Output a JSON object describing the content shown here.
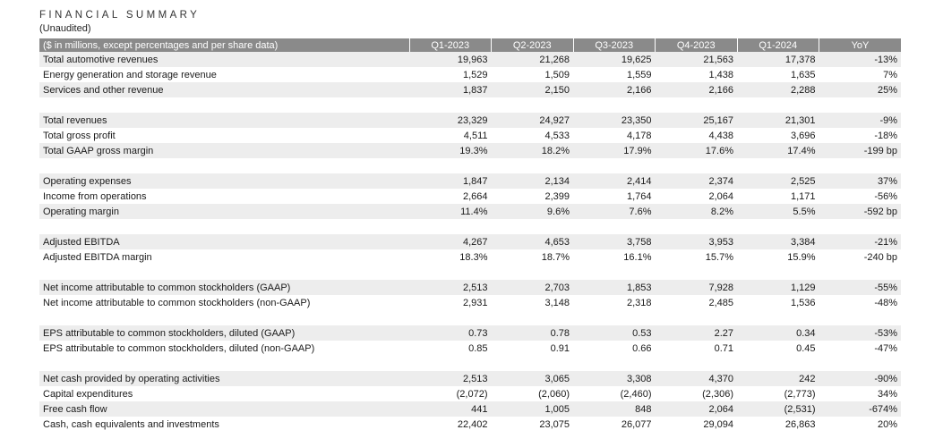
{
  "header": {
    "title": "FINANCIAL SUMMARY",
    "subtitle": "(Unaudited)"
  },
  "table": {
    "columns": [
      "($ in millions, except percentages and per share data)",
      "Q1-2023",
      "Q2-2023",
      "Q3-2023",
      "Q4-2023",
      "Q1-2024",
      "YoY"
    ],
    "highlight_color": "#f6dada",
    "header_color": "#8a8a8a",
    "groups": [
      {
        "rows": [
          {
            "label": "Total automotive revenues",
            "values": [
              "19,963",
              "21,268",
              "19,625",
              "21,563",
              "17,378",
              "-13%"
            ]
          },
          {
            "label": "Energy generation and storage revenue",
            "values": [
              "1,529",
              "1,509",
              "1,559",
              "1,438",
              "1,635",
              "7%"
            ]
          },
          {
            "label": "Services and other revenue",
            "values": [
              "1,837",
              "2,150",
              "2,166",
              "2,166",
              "2,288",
              "25%"
            ]
          }
        ]
      },
      {
        "rows": [
          {
            "label": "Total revenues",
            "values": [
              "23,329",
              "24,927",
              "23,350",
              "25,167",
              "21,301",
              "-9%"
            ]
          },
          {
            "label": "Total gross profit",
            "values": [
              "4,511",
              "4,533",
              "4,178",
              "4,438",
              "3,696",
              "-18%"
            ]
          },
          {
            "label": "Total GAAP gross margin",
            "values": [
              "19.3%",
              "18.2%",
              "17.9%",
              "17.6%",
              "17.4%",
              "-199 bp"
            ]
          }
        ]
      },
      {
        "rows": [
          {
            "label": "Operating expenses",
            "values": [
              "1,847",
              "2,134",
              "2,414",
              "2,374",
              "2,525",
              "37%"
            ]
          },
          {
            "label": "Income from operations",
            "values": [
              "2,664",
              "2,399",
              "1,764",
              "2,064",
              "1,171",
              "-56%"
            ]
          },
          {
            "label": "Operating margin",
            "values": [
              "11.4%",
              "9.6%",
              "7.6%",
              "8.2%",
              "5.5%",
              "-592 bp"
            ]
          }
        ]
      },
      {
        "rows": [
          {
            "label": "Adjusted EBITDA",
            "values": [
              "4,267",
              "4,653",
              "3,758",
              "3,953",
              "3,384",
              "-21%"
            ]
          },
          {
            "label": "Adjusted EBITDA margin",
            "values": [
              "18.3%",
              "18.7%",
              "16.1%",
              "15.7%",
              "15.9%",
              "-240 bp"
            ]
          }
        ]
      },
      {
        "rows": [
          {
            "label": "Net income attributable to common stockholders (GAAP)",
            "values": [
              "2,513",
              "2,703",
              "1,853",
              "7,928",
              "1,129",
              "-55%"
            ]
          },
          {
            "label": "Net income attributable to common stockholders (non-GAAP)",
            "values": [
              "2,931",
              "3,148",
              "2,318",
              "2,485",
              "1,536",
              "-48%"
            ]
          }
        ]
      },
      {
        "rows": [
          {
            "label": "EPS attributable to common stockholders, diluted (GAAP)",
            "values": [
              "0.73",
              "0.78",
              "0.53",
              "2.27",
              "0.34",
              "-53%"
            ]
          },
          {
            "label": "EPS attributable to common stockholders, diluted (non-GAAP)",
            "values": [
              "0.85",
              "0.91",
              "0.66",
              "0.71",
              "0.45",
              "-47%"
            ]
          }
        ]
      },
      {
        "rows": [
          {
            "label": "Net cash provided by operating activities",
            "values": [
              "2,513",
              "3,065",
              "3,308",
              "4,370",
              "242",
              "-90%"
            ]
          },
          {
            "label": "Capital expenditures",
            "values": [
              "(2,072)",
              "(2,060)",
              "(2,460)",
              "(2,306)",
              "(2,773)",
              "34%"
            ]
          },
          {
            "label": "Free cash flow",
            "values": [
              "441",
              "1,005",
              "848",
              "2,064",
              "(2,531)",
              "-674%"
            ]
          },
          {
            "label": "Cash, cash equivalents and investments",
            "values": [
              "22,402",
              "23,075",
              "26,077",
              "29,094",
              "26,863",
              "20%"
            ]
          }
        ]
      }
    ]
  }
}
